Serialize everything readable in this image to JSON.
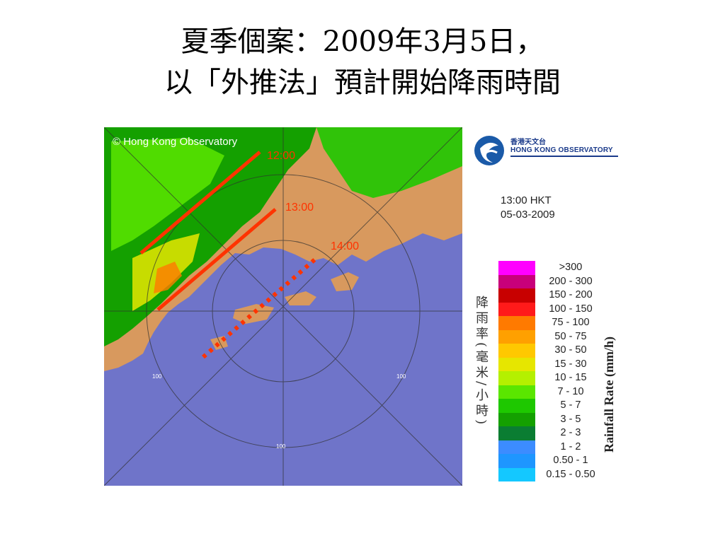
{
  "slide": {
    "title_line1": "夏季個案：2009年3月5日，",
    "title_line2": "以「外推法」預計開始降雨時間"
  },
  "radar": {
    "copyright": "© Hong Kong Observatory",
    "range_ring_label": "100",
    "forecast_lines": [
      {
        "label": "12:00",
        "style": "solid"
      },
      {
        "label": "13:00",
        "style": "solid"
      },
      {
        "label": "14:00",
        "style": "dotted"
      }
    ],
    "colors": {
      "sea": "#6f74c9",
      "land": "#d8995e",
      "annotation": "#ff3300"
    }
  },
  "legend": {
    "org_name_cn": "香港天文台",
    "org_name_en": "HONG KONG OBSERVATORY",
    "time": "13:00 HKT",
    "date": "05-03-2009",
    "axis_label_cn": "降雨率(毫米/小時)",
    "axis_label_en": "Rainfall Rate (mm/h)",
    "scale": [
      {
        "label": ">300",
        "color": "#ff00ff"
      },
      {
        "label": "200 - 300",
        "color": "#c8007a"
      },
      {
        "label": "150 - 200",
        "color": "#c80000"
      },
      {
        "label": "100 - 150",
        "color": "#ff1a1a"
      },
      {
        "label": "75 - 100",
        "color": "#ff7a00"
      },
      {
        "label": "50 - 75",
        "color": "#ffa000"
      },
      {
        "label": "30 - 50",
        "color": "#ffc800"
      },
      {
        "label": "15 - 30",
        "color": "#e6e600"
      },
      {
        "label": "10 - 15",
        "color": "#b4f000"
      },
      {
        "label": "7 - 10",
        "color": "#5ae600"
      },
      {
        "label": "5 - 7",
        "color": "#1ec800"
      },
      {
        "label": "3 - 5",
        "color": "#14a000"
      },
      {
        "label": "2 - 3",
        "color": "#0a7d32"
      },
      {
        "label": "1 - 2",
        "color": "#3c8cff"
      },
      {
        "label": "0.50 - 1",
        "color": "#1e96ff"
      },
      {
        "label": "0.15 - 0.50",
        "color": "#14c8ff"
      }
    ]
  }
}
